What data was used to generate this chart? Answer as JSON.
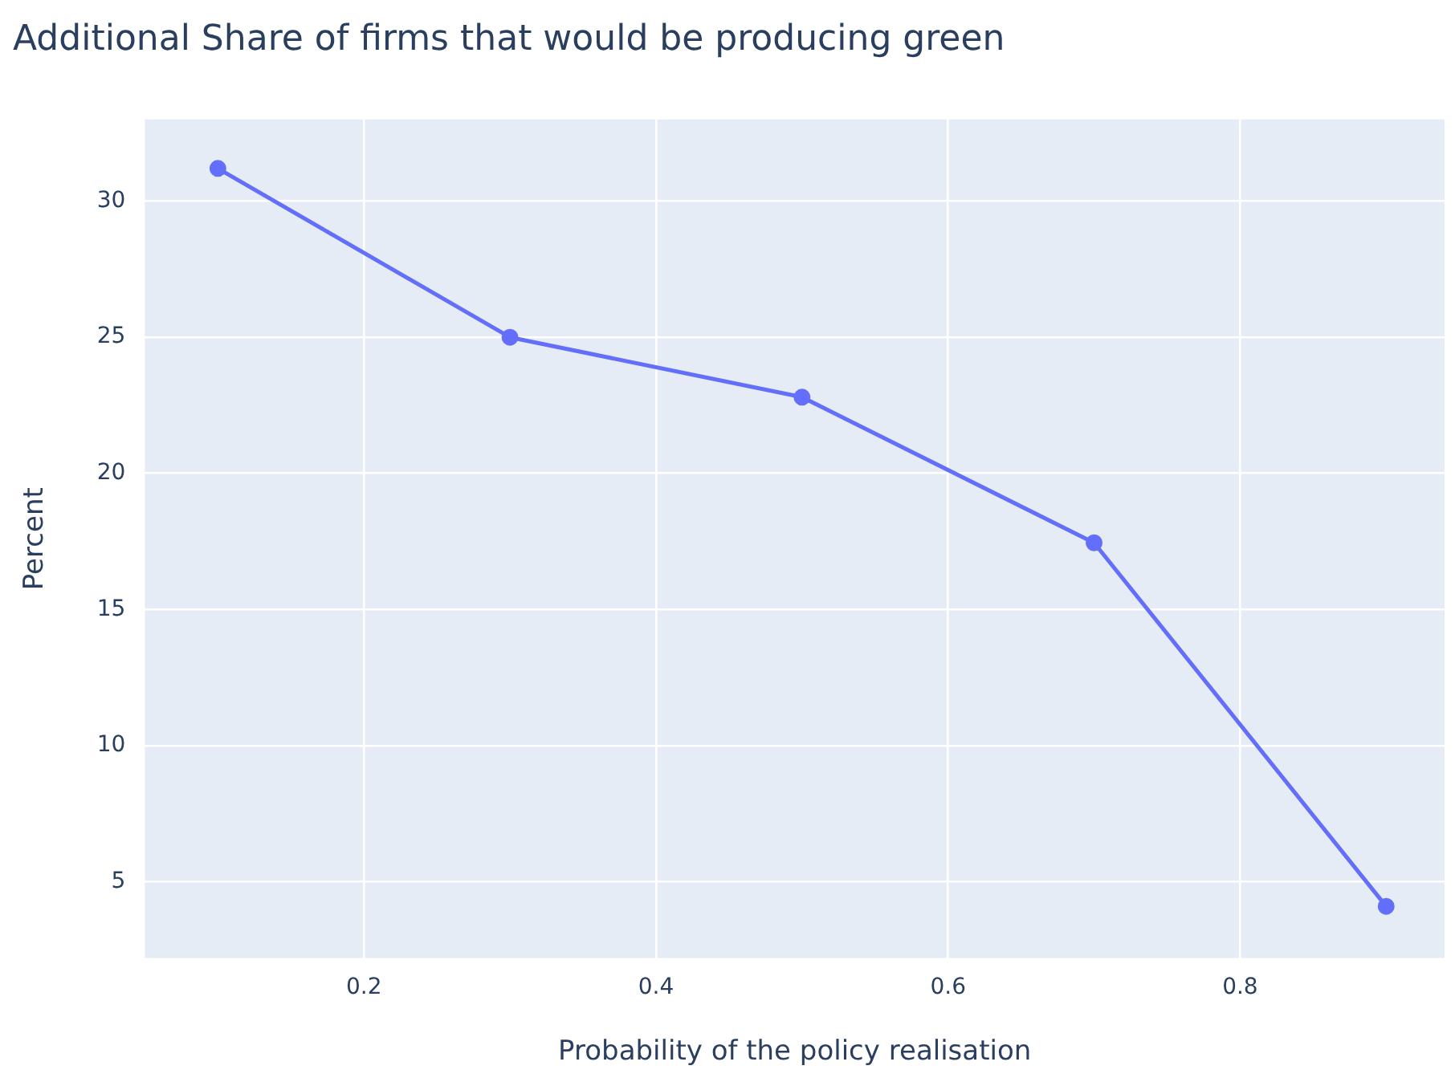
{
  "chart_data": {
    "type": "line",
    "title": "Additional Share of firms that would be producing green",
    "xlabel": "Probability of the policy realisation",
    "ylabel": "Percent",
    "x": [
      0.1,
      0.3,
      0.5,
      0.7,
      0.9
    ],
    "series": [
      {
        "color": "#636efa",
        "values": [
          31.2,
          25.0,
          22.8,
          17.45,
          4.1
        ]
      }
    ],
    "xlim": [
      0.05,
      0.94
    ],
    "xticks": [
      0.2,
      0.4,
      0.6,
      0.8
    ],
    "ylim": [
      2.2,
      33
    ],
    "yticks": [
      5,
      10,
      15,
      20,
      25,
      30
    ],
    "grid": true,
    "legend": false,
    "marker": "circle",
    "line_style": "solid"
  }
}
